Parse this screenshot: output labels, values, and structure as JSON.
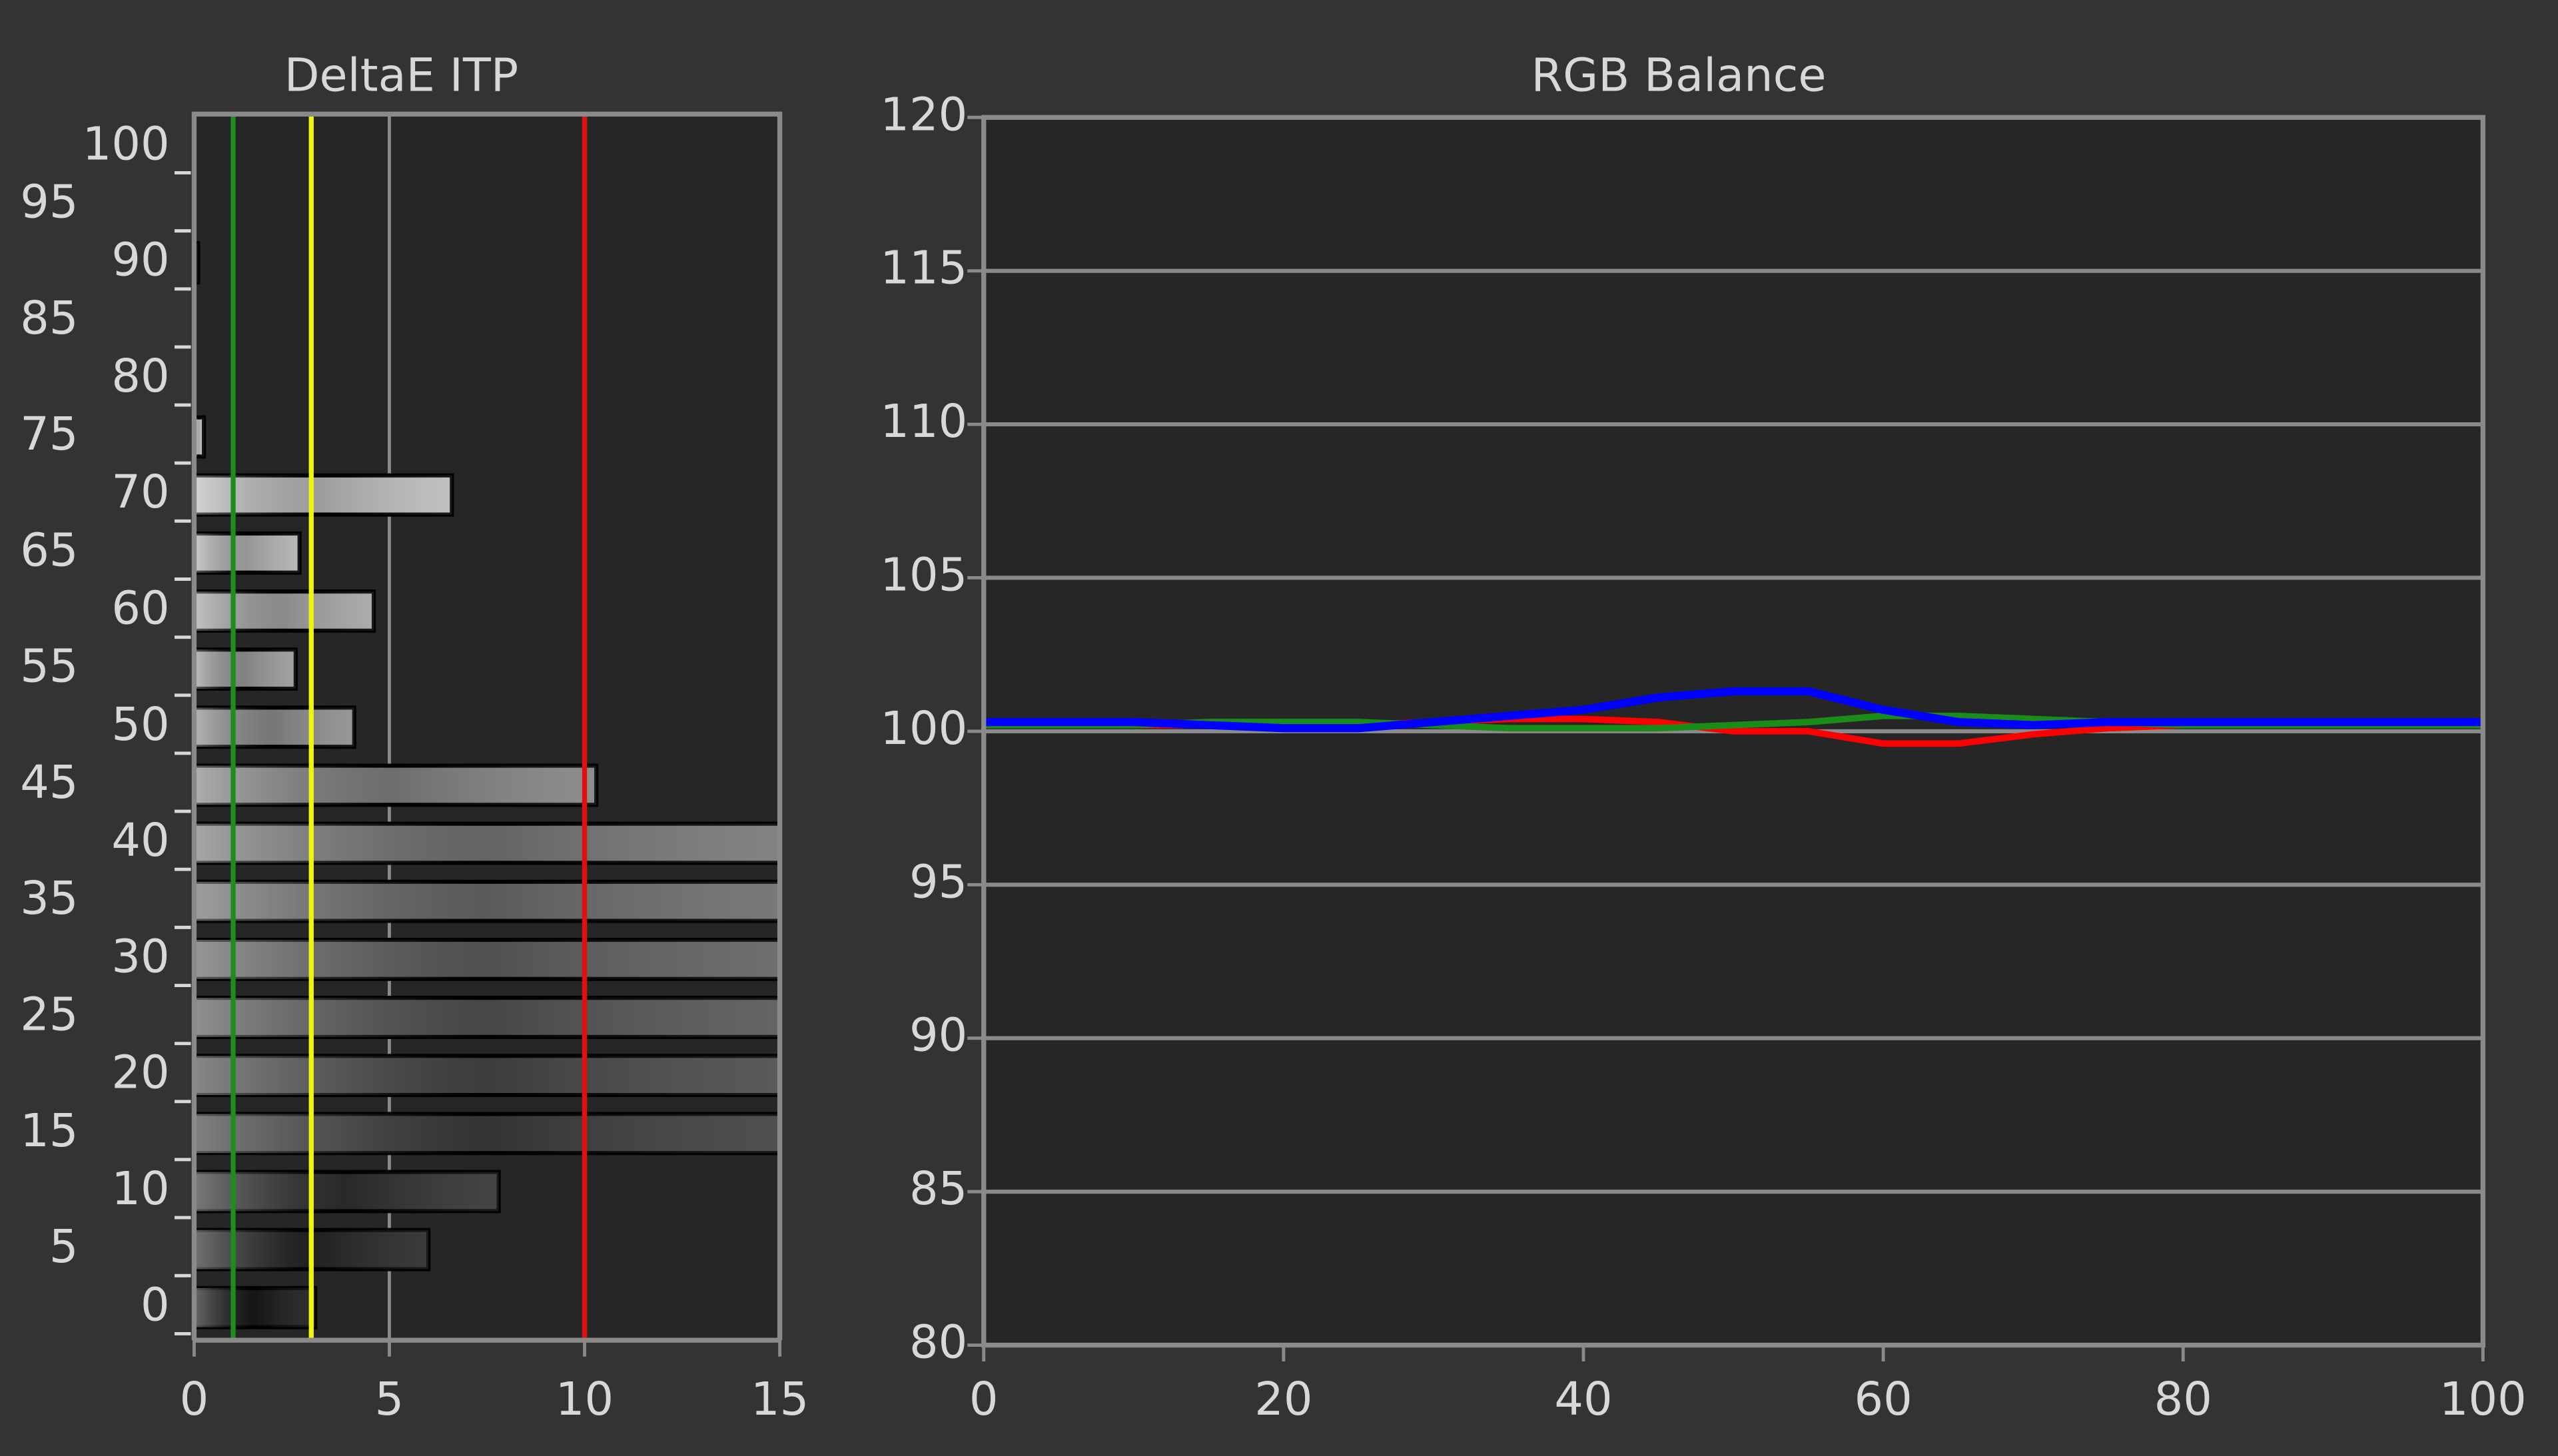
{
  "chart_data": [
    {
      "type": "hbar",
      "title": "DeltaE ITP",
      "categories": [
        0,
        5,
        10,
        15,
        20,
        25,
        30,
        35,
        40,
        45,
        50,
        55,
        60,
        65,
        70,
        75,
        80,
        85,
        90,
        95,
        100
      ],
      "values": [
        3.1,
        6.0,
        7.8,
        15,
        15,
        15,
        15,
        15,
        15,
        10.3,
        4.1,
        2.6,
        4.6,
        2.7,
        6.6,
        0.25,
        null,
        null,
        0.1,
        null,
        null
      ],
      "xlim": [
        0,
        15
      ],
      "xticks": [
        0,
        5,
        10,
        15
      ],
      "grid": true,
      "reference_lines": [
        {
          "value": 1,
          "color": "#1e8c1e"
        },
        {
          "value": 3,
          "color": "#f2f20a"
        },
        {
          "value": 10,
          "color": "#e01010"
        }
      ]
    },
    {
      "type": "line",
      "title": "RGB Balance",
      "x": [
        0,
        5,
        10,
        15,
        20,
        25,
        30,
        35,
        40,
        45,
        50,
        55,
        60,
        65,
        70,
        75,
        80,
        85,
        90,
        95,
        100
      ],
      "series": [
        {
          "color": "#ff0000",
          "values": [
            100.2,
            100.2,
            100.2,
            100.2,
            100.2,
            100.2,
            100.3,
            100.4,
            100.4,
            100.3,
            100.0,
            100.0,
            99.6,
            99.6,
            99.9,
            100.1,
            100.2,
            100.2,
            100.2,
            100.2,
            100.2
          ]
        },
        {
          "color": "#1a8c1a",
          "values": [
            100.2,
            100.2,
            100.2,
            100.3,
            100.3,
            100.3,
            100.2,
            100.1,
            100.1,
            100.1,
            100.2,
            100.3,
            100.5,
            100.5,
            100.4,
            100.3,
            100.2,
            100.2,
            100.2,
            100.2,
            100.2
          ]
        },
        {
          "color": "#0000ff",
          "values": [
            100.3,
            100.3,
            100.3,
            100.2,
            100.1,
            100.1,
            100.3,
            100.5,
            100.7,
            101.1,
            101.3,
            101.3,
            100.7,
            100.3,
            100.2,
            100.3,
            100.3,
            100.3,
            100.3,
            100.3,
            100.3
          ]
        }
      ],
      "xlim": [
        0,
        100
      ],
      "xticks": [
        0,
        20,
        40,
        60,
        80,
        100
      ],
      "ylim": [
        80,
        120
      ],
      "yticks": [
        80,
        85,
        90,
        95,
        100,
        105,
        110,
        115,
        120
      ],
      "grid": true
    }
  ]
}
